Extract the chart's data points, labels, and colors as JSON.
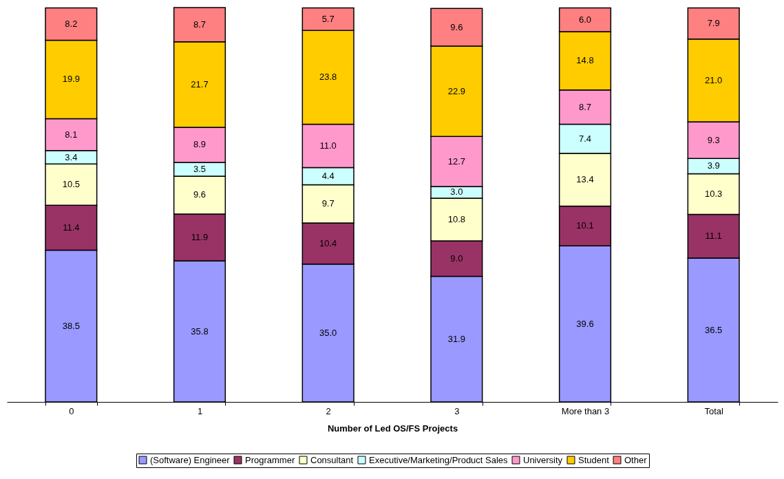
{
  "chart_data": {
    "type": "bar",
    "stacked": true,
    "xlabel": "Number of Led OS/FS Projects",
    "categories": [
      "0",
      "1",
      "2",
      "3",
      "More than 3",
      "Total"
    ],
    "legend": "bottom",
    "tick_labels": "x",
    "series": [
      {
        "name": "(Software) Engineer",
        "color": "#9999ff",
        "values": [
          38.5,
          35.8,
          35.0,
          31.9,
          39.6,
          36.5
        ],
        "value_labels": [
          "38.5",
          "35.8",
          "35.0",
          "31.9",
          "39.6",
          "36.5"
        ]
      },
      {
        "name": "Programmer",
        "color": "#993366",
        "values": [
          11.4,
          11.9,
          10.4,
          9.0,
          10.1,
          11.1
        ],
        "value_labels": [
          "11.4",
          "11.9",
          "10.4",
          "9.0",
          "10.1",
          "11.1"
        ]
      },
      {
        "name": "Consultant",
        "color": "#ffffcc",
        "values": [
          10.5,
          9.6,
          9.7,
          10.8,
          13.4,
          10.3
        ],
        "value_labels": [
          "10.5",
          "9.6",
          "9.7",
          "10.8",
          "13.4",
          "10.3"
        ]
      },
      {
        "name": "Executive/Marketing/Product Sales",
        "color": "#ccffff",
        "values": [
          3.4,
          3.5,
          4.4,
          3.0,
          7.4,
          3.9
        ],
        "value_labels": [
          "3.4",
          "3.5",
          "4.4",
          "3.0",
          "7.4",
          "3.9"
        ]
      },
      {
        "name": "University",
        "color": "#ff99cc",
        "values": [
          8.1,
          8.9,
          11.0,
          12.7,
          8.7,
          9.3
        ],
        "value_labels": [
          "8.1",
          "8.9",
          "11.0",
          "12.7",
          "8.7",
          "9.3"
        ]
      },
      {
        "name": "Student",
        "color": "#ffcc00",
        "values": [
          19.9,
          21.7,
          23.8,
          22.9,
          14.8,
          21.0
        ],
        "value_labels": [
          "19.9",
          "21.7",
          "23.8",
          "22.9",
          "14.8",
          "21.0"
        ]
      },
      {
        "name": "Other",
        "color": "#ff8080",
        "values": [
          8.2,
          8.7,
          5.7,
          9.6,
          6.0,
          7.9
        ],
        "value_labels": [
          "8.2",
          "8.7",
          "5.7",
          "9.6",
          "6.0",
          "7.9"
        ]
      }
    ]
  }
}
